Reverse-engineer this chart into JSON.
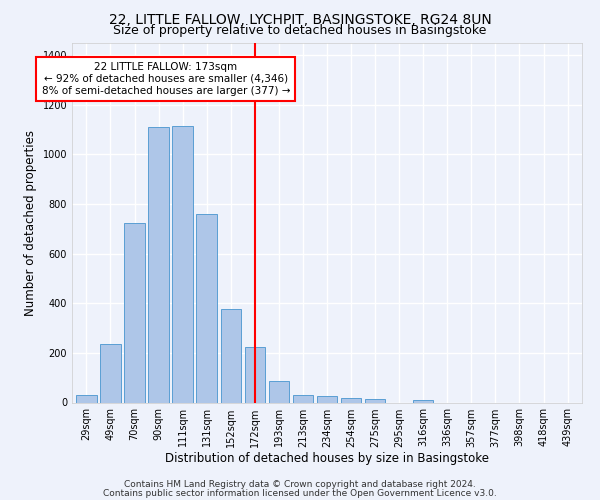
{
  "title": "22, LITTLE FALLOW, LYCHPIT, BASINGSTOKE, RG24 8UN",
  "subtitle": "Size of property relative to detached houses in Basingstoke",
  "xlabel": "Distribution of detached houses by size in Basingstoke",
  "ylabel": "Number of detached properties",
  "categories": [
    "29sqm",
    "49sqm",
    "70sqm",
    "90sqm",
    "111sqm",
    "131sqm",
    "152sqm",
    "172sqm",
    "193sqm",
    "213sqm",
    "234sqm",
    "254sqm",
    "275sqm",
    "295sqm",
    "316sqm",
    "336sqm",
    "357sqm",
    "377sqm",
    "398sqm",
    "418sqm",
    "439sqm"
  ],
  "values": [
    30,
    235,
    725,
    1110,
    1115,
    760,
    378,
    222,
    88,
    30,
    25,
    20,
    15,
    0,
    12,
    0,
    0,
    0,
    0,
    0,
    0
  ],
  "bar_color": "#aec6e8",
  "bar_edge_color": "#5a9fd4",
  "vline_x": 7,
  "vline_color": "red",
  "annotation_text": "22 LITTLE FALLOW: 173sqm\n← 92% of detached houses are smaller (4,346)\n8% of semi-detached houses are larger (377) →",
  "annotation_box_color": "white",
  "annotation_box_edge_color": "red",
  "ylim": [
    0,
    1450
  ],
  "footnote1": "Contains HM Land Registry data © Crown copyright and database right 2024.",
  "footnote2": "Contains public sector information licensed under the Open Government Licence v3.0.",
  "bg_color": "#eef2fb",
  "grid_color": "white",
  "title_fontsize": 10,
  "subtitle_fontsize": 9,
  "label_fontsize": 8.5,
  "tick_fontsize": 7,
  "footnote_fontsize": 6.5,
  "annotation_fontsize": 7.5
}
